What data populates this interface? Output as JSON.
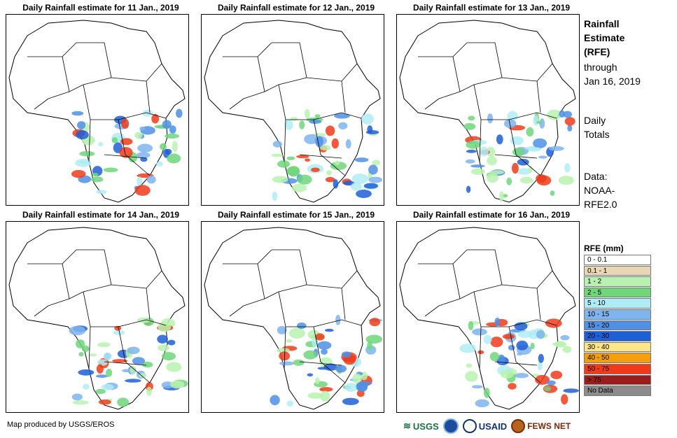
{
  "panels": [
    {
      "title": "Daily Rainfall estimate for 11 Jan., 2019",
      "day": "11 Jan., 2019"
    },
    {
      "title": "Daily Rainfall estimate for 12 Jan., 2019",
      "day": "12 Jan., 2019"
    },
    {
      "title": "Daily Rainfall estimate for 13 Jan., 2019",
      "day": "13 Jan., 2019"
    },
    {
      "title": "Daily Rainfall estimate for 14 Jan., 2019",
      "day": "14 Jan., 2019"
    },
    {
      "title": "Daily Rainfall estimate for 15 Jan., 2019",
      "day": "15 Jan., 2019"
    },
    {
      "title": "Daily Rainfall estimate for 16 Jan., 2019",
      "day": "16 Jan., 2019"
    }
  ],
  "side": {
    "title_line1": "Rainfall",
    "title_line2": "Estimate",
    "title_line3": "(RFE)",
    "through": "through",
    "date": "Jan 16, 2019",
    "totals_line1": "Daily",
    "totals_line2": "Totals",
    "data_line1": "Data:",
    "data_line2": "NOAA-",
    "data_line3": "RFE2.0"
  },
  "legend": {
    "title": "RFE (mm)",
    "items": [
      {
        "label": "0 - 0.1",
        "color": "#ffffff"
      },
      {
        "label": "0.1 - 1",
        "color": "#e8d7b5"
      },
      {
        "label": "1 - 2",
        "color": "#b8f2b0"
      },
      {
        "label": "2 - 5",
        "color": "#6fd67a"
      },
      {
        "label": "5 - 10",
        "color": "#b0ecf5"
      },
      {
        "label": "10 - 15",
        "color": "#7fb4ef"
      },
      {
        "label": "15 - 20",
        "color": "#4f8fe6"
      },
      {
        "label": "20 - 30",
        "color": "#1f5fd6"
      },
      {
        "label": "30 - 40",
        "color": "#fde68a"
      },
      {
        "label": "40 - 50",
        "color": "#f59e0b"
      },
      {
        "label": "50 - 75",
        "color": "#ef3b1a"
      },
      {
        "label": "> 75",
        "color": "#9b1c1c"
      },
      {
        "label": "No Data",
        "color": "#8c8c8c"
      }
    ]
  },
  "footer": {
    "credit": "Map produced by USGS/EROS",
    "logo_usgs": "USGS",
    "logo_usaid": "USAID",
    "logo_fews": "FEWS NET"
  }
}
